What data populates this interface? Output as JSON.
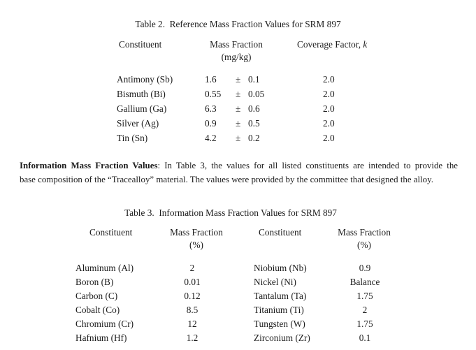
{
  "table2": {
    "title": "Table 2.  Reference Mass Fraction Values for SRM 897",
    "headers": {
      "constituent": "Constituent",
      "mass_fraction": "Mass Fraction",
      "mass_fraction_unit": "(mg/kg)",
      "coverage_factor": "Coverage Factor, ",
      "coverage_factor_symbol": "k"
    },
    "rows": [
      {
        "constituent": "Antimony (Sb)",
        "value": "1.6",
        "pm": "±",
        "uncertainty": "0.1",
        "coverage": "2.0"
      },
      {
        "constituent": "Bismuth (Bi)",
        "value": "0.55",
        "pm": "±",
        "uncertainty": "0.05",
        "coverage": "2.0"
      },
      {
        "constituent": "Gallium (Ga)",
        "value": "6.3",
        "pm": "±",
        "uncertainty": "0.6",
        "coverage": "2.0"
      },
      {
        "constituent": "Silver (Ag)",
        "value": "0.9",
        "pm": "±",
        "uncertainty": "0.5",
        "coverage": "2.0"
      },
      {
        "constituent": "Tin (Sn)",
        "value": "4.2",
        "pm": "±",
        "uncertainty": "0.2",
        "coverage": "2.0"
      }
    ]
  },
  "paragraph": {
    "bold_lead": "Information Mass Fraction Values",
    "line1_rest": ":  In Table 3, the values for all listed constituents are intended to provide the",
    "line2": "base composition of the “Tracealloy” material.  The values were provided by the committee that designed the alloy."
  },
  "table3": {
    "title": "Table 3.  Information Mass Fraction Values for SRM 897",
    "left": {
      "headers": {
        "constituent": "Constituent",
        "mass_fraction": "Mass Fraction",
        "unit": "(%)"
      },
      "rows": [
        {
          "constituent": "Aluminum (Al)",
          "value": "2"
        },
        {
          "constituent": "Boron (B)",
          "value": "0.01"
        },
        {
          "constituent": "Carbon (C)",
          "value": "0.12"
        },
        {
          "constituent": "Cobalt (Co)",
          "value": "8.5"
        },
        {
          "constituent": "Chromium (Cr)",
          "value": "12"
        },
        {
          "constituent": "Hafnium (Hf)",
          "value": "1.2"
        }
      ]
    },
    "right": {
      "headers": {
        "constituent": "Constituent",
        "mass_fraction": "Mass Fraction",
        "unit": "(%)"
      },
      "rows": [
        {
          "constituent": "Niobium (Nb)",
          "value": "0.9"
        },
        {
          "constituent": "Nickel (Ni)",
          "value": "Balance"
        },
        {
          "constituent": "Tantalum (Ta)",
          "value": "1.75"
        },
        {
          "constituent": "Titanium (Ti)",
          "value": "2"
        },
        {
          "constituent": "Tungsten (W)",
          "value": "1.75"
        },
        {
          "constituent": "Zirconium (Zr)",
          "value": "0.1"
        }
      ]
    }
  }
}
